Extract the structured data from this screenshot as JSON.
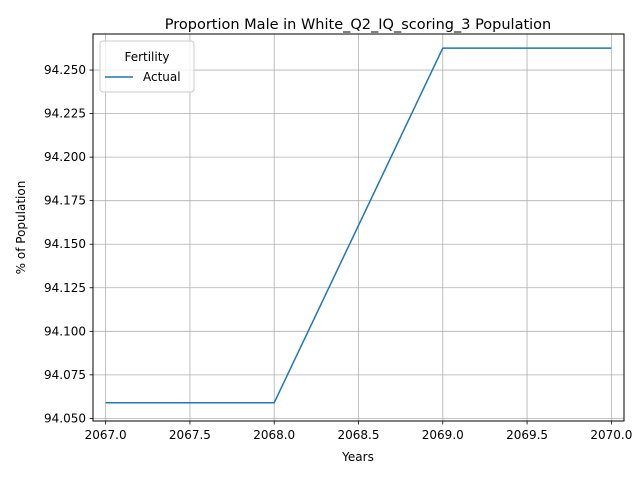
{
  "chart_data": {
    "type": "line",
    "title": "Proportion Male in White_Q2_IQ_scoring_3 Population",
    "xlabel": "Years",
    "ylabel": "% of Population",
    "xlim": [
      2066.925,
      2070.075
    ],
    "ylim": [
      94.0485,
      94.2707
    ],
    "xticks": [
      "2067.0",
      "2067.5",
      "2068.0",
      "2068.5",
      "2069.0",
      "2069.5",
      "2070.0"
    ],
    "yticks": [
      "94.050",
      "94.075",
      "94.100",
      "94.125",
      "94.150",
      "94.175",
      "94.200",
      "94.225",
      "94.250"
    ],
    "grid": true,
    "legend": {
      "title": "Fertility",
      "placement": "top-left"
    },
    "series": [
      {
        "name": "Actual",
        "color": "#1f77b4",
        "x": [
          2067,
          2068,
          2069,
          2070
        ],
        "y": [
          94.059,
          94.059,
          94.2626,
          94.2626
        ]
      }
    ]
  }
}
